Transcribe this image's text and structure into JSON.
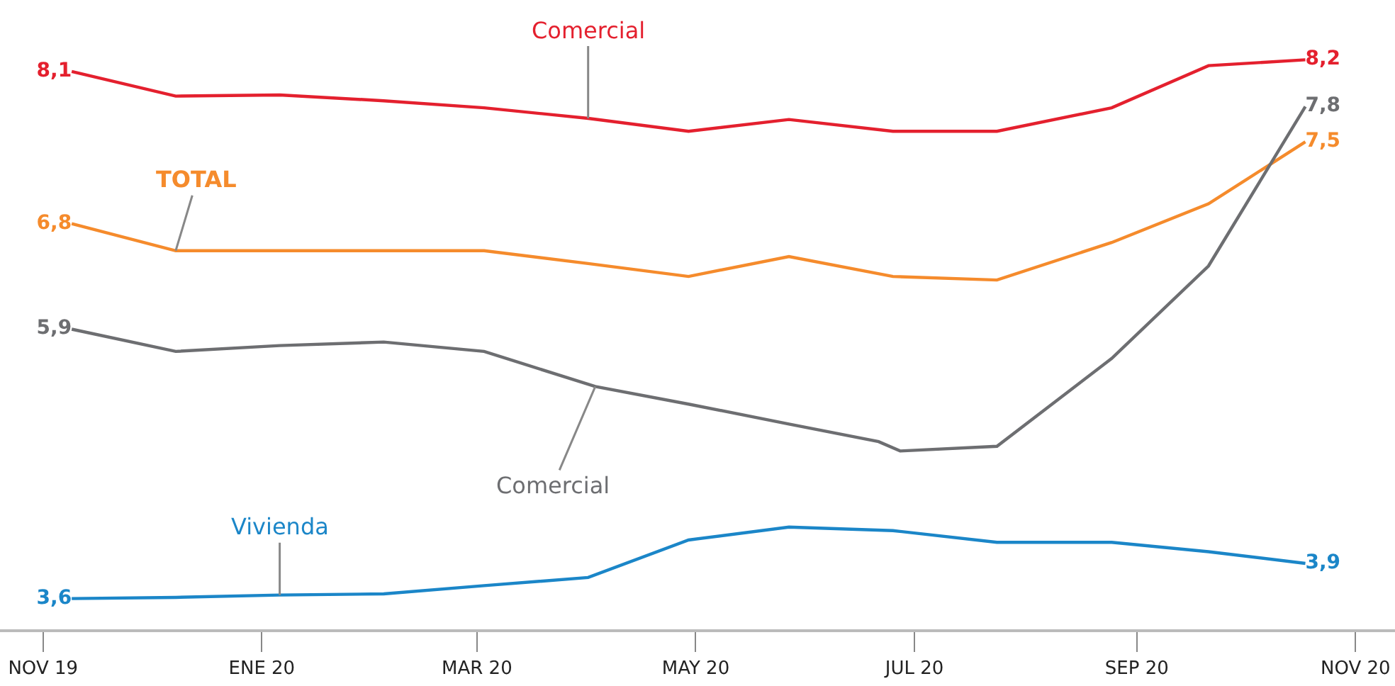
{
  "chart_data": {
    "type": "line",
    "x": [
      "2019-11-09",
      "2019-12-08",
      "2020-01-06",
      "2020-02-04",
      "2020-03-03",
      "2020-04-01",
      "2020-04-29",
      "2020-05-27",
      "2020-06-25",
      "2020-07-24",
      "2020-08-25",
      "2020-09-21",
      "2020-10-18"
    ],
    "series": [
      {
        "name": "Comercial",
        "color": "#e4202e",
        "values": [
          8.1,
          7.89,
          7.9,
          7.85,
          7.79,
          7.7,
          7.59,
          7.69,
          7.59,
          7.59,
          7.79,
          8.15,
          8.2
        ],
        "value_labels": [
          "8,1",
          null,
          null,
          null,
          null,
          null,
          null,
          null,
          null,
          null,
          null,
          null,
          "8,2"
        ]
      },
      {
        "name": "TOTAL",
        "color": "#f58b2c",
        "values": [
          6.8,
          6.57,
          6.57,
          6.57,
          6.57,
          6.46,
          6.35,
          6.52,
          6.35,
          6.32,
          6.64,
          6.97,
          7.5
        ],
        "value_labels": [
          "6,8",
          null,
          null,
          null,
          null,
          null,
          null,
          null,
          null,
          null,
          null,
          null,
          "7,5"
        ]
      },
      {
        "name": "Comercial",
        "color": "#6d6e71",
        "x": [
          "2019-11-09",
          "2019-12-08",
          "2020-01-06",
          "2020-02-04",
          "2020-03-03",
          "2020-04-03",
          "2020-04-29",
          "2020-05-27",
          "2020-06-21",
          "2020-06-27",
          "2020-07-24",
          "2020-08-25",
          "2020-09-21",
          "2020-10-18"
        ],
        "values": [
          5.9,
          5.71,
          5.76,
          5.79,
          5.71,
          5.41,
          5.26,
          5.09,
          4.94,
          4.86,
          4.9,
          5.65,
          6.44,
          7.8
        ],
        "value_labels": [
          "5,9",
          null,
          null,
          null,
          null,
          null,
          null,
          null,
          null,
          null,
          null,
          null,
          null,
          "7,8"
        ]
      },
      {
        "name": "Vivienda",
        "color": "#1b86c8",
        "values": [
          3.6,
          3.61,
          3.63,
          3.64,
          3.71,
          3.78,
          4.1,
          4.21,
          4.18,
          4.08,
          4.08,
          4.0,
          3.9
        ],
        "value_labels": [
          "3,6",
          null,
          null,
          null,
          null,
          null,
          null,
          null,
          null,
          null,
          null,
          null,
          "3,9"
        ]
      }
    ],
    "xlim": [
      "2019-10-20",
      "2020-11-12"
    ],
    "xticks": [
      {
        "value": "2019-11-01",
        "label": "NOV 19"
      },
      {
        "value": "2020-01-01",
        "label": "ENE 20"
      },
      {
        "value": "2020-03-01",
        "label": "MAR 20"
      },
      {
        "value": "2020-05-01",
        "label": "MAY 20"
      },
      {
        "value": "2020-07-01",
        "label": "JUL 20"
      },
      {
        "value": "2020-09-01",
        "label": "SEP 20"
      },
      {
        "value": "2020-11-01",
        "label": "NOV 20"
      }
    ],
    "tick_labels": "x",
    "legend": false,
    "marker": "none",
    "line_style": "solid"
  }
}
